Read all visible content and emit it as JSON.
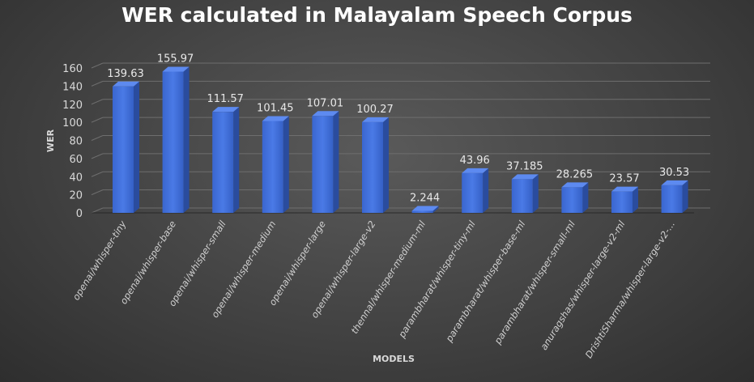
{
  "chart_data": {
    "type": "bar",
    "title": "WER calculated in Malayalam Speech Corpus",
    "xlabel": "MODELS",
    "ylabel": "WER",
    "ylim": [
      0,
      160
    ],
    "yticks": [
      0,
      20,
      40,
      60,
      80,
      100,
      120,
      140,
      160
    ],
    "grid": true,
    "categories": [
      "openai/whisper-tiny",
      "openai/whisper-base",
      "openai/whisper-small",
      "openai/whisper-medium",
      "openai/whisper-large",
      "openai/whisper-large-v2",
      "thennal/whisper-medium-ml",
      "parambharat/whisper-tiny-ml",
      "parambharat/whisper-base-ml",
      "parambharat/whisper-small-ml",
      "anuragshas/whisper-large-v2-ml",
      "DrishtiSharma/whisper-large-v2-..."
    ],
    "values": [
      139.63,
      155.97,
      111.57,
      101.45,
      107.01,
      100.27,
      2.244,
      43.96,
      37.185,
      28.265,
      23.57,
      30.53
    ],
    "value_labels": [
      "139.63",
      "155.97",
      "111.57",
      "101.45",
      "107.01",
      "100.27",
      "2.244",
      "43.96",
      "37.185",
      "28.265",
      "23.57",
      "30.53"
    ],
    "bar_color": "#3f6fd8"
  }
}
